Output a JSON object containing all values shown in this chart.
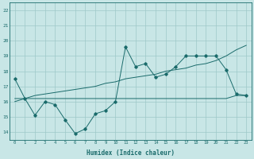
{
  "xlabel": "Humidex (Indice chaleur)",
  "background_color": "#c8e6e6",
  "grid_color": "#9ec8c8",
  "line_color": "#1a6b6b",
  "x": [
    0,
    1,
    2,
    3,
    4,
    5,
    6,
    7,
    8,
    9,
    10,
    11,
    12,
    13,
    14,
    15,
    16,
    17,
    18,
    19,
    20,
    21,
    22,
    23
  ],
  "line1": [
    17.5,
    16.2,
    15.1,
    16.0,
    15.8,
    14.8,
    13.9,
    14.2,
    15.2,
    15.4,
    16.0,
    19.6,
    18.3,
    18.5,
    17.6,
    17.8,
    18.3,
    19.0,
    19.0,
    19.0,
    19.0,
    18.1,
    16.5,
    16.4
  ],
  "line2": [
    16.2,
    16.2,
    16.2,
    16.2,
    16.2,
    16.2,
    16.2,
    16.2,
    16.2,
    16.2,
    16.2,
    16.2,
    16.2,
    16.2,
    16.2,
    16.2,
    16.2,
    16.2,
    16.2,
    16.2,
    16.2,
    16.2,
    16.4,
    16.4
  ],
  "line3": [
    16.0,
    16.2,
    16.4,
    16.5,
    16.6,
    16.7,
    16.8,
    16.9,
    17.0,
    17.2,
    17.3,
    17.5,
    17.6,
    17.7,
    17.8,
    18.0,
    18.1,
    18.2,
    18.4,
    18.5,
    18.7,
    19.0,
    19.4,
    19.7
  ],
  "ylim": [
    13.5,
    22.5
  ],
  "xlim": [
    -0.5,
    23.5
  ],
  "yticks": [
    14,
    15,
    16,
    17,
    18,
    19,
    20,
    21,
    22
  ],
  "xticks": [
    0,
    1,
    2,
    3,
    4,
    5,
    6,
    7,
    8,
    9,
    10,
    11,
    12,
    13,
    14,
    15,
    16,
    17,
    18,
    19,
    20,
    21,
    22,
    23
  ]
}
